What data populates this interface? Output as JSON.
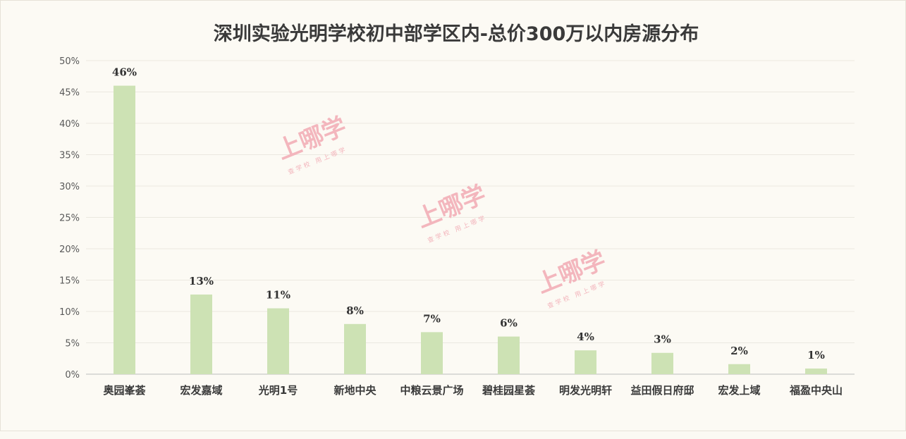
{
  "chart_data": {
    "type": "bar",
    "title": "深圳实验光明学校初中部学区内-总价300万以内房源分布",
    "categories": [
      "奥园峯荟",
      "宏发嘉域",
      "光明1号",
      "新地中央",
      "中粮云景广场",
      "碧桂园星荟",
      "明发光明轩",
      "益田假日府邸",
      "宏发上域",
      "福盈中央山"
    ],
    "values": [
      46,
      12.7,
      10.5,
      8,
      6.7,
      6,
      3.8,
      3.4,
      1.6,
      0.9
    ],
    "data_labels": [
      "46%",
      "13%",
      "11%",
      "8%",
      "7%",
      "6%",
      "4%",
      "3%",
      "2%",
      "1%"
    ],
    "y_ticks": [
      "0%",
      "5%",
      "10%",
      "15%",
      "20%",
      "25%",
      "30%",
      "35%",
      "40%",
      "45%",
      "50%"
    ],
    "ylim": [
      0,
      50
    ],
    "grid": true,
    "bar_color": "#cde2b4"
  },
  "watermark": {
    "main": "上哪学",
    "sub": "查学校  用上哪学"
  }
}
